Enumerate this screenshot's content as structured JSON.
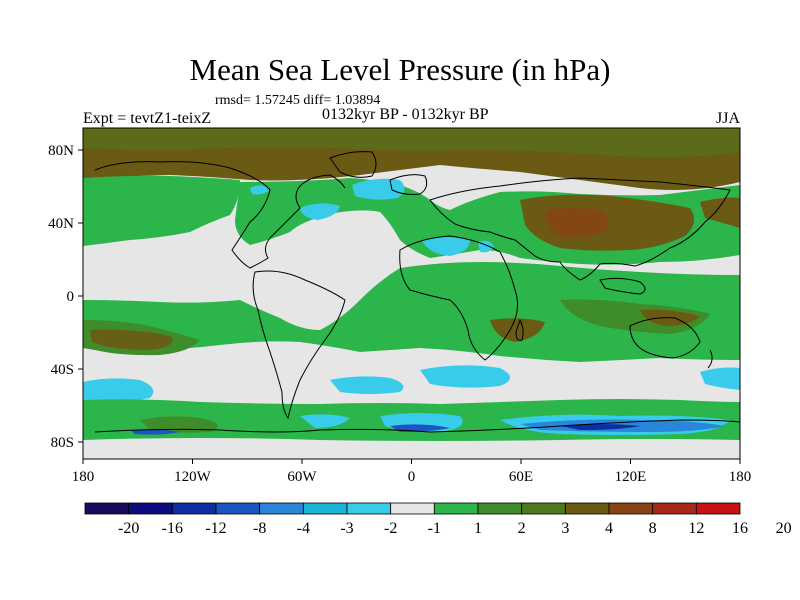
{
  "figure": {
    "title": "Mean Sea Level Pressure (in hPa)",
    "stats": "rmsd= 1.57245 diff= 1.03894",
    "experiment": "Expt = tevtZ1-teixZ",
    "period": "0132kyr BP - 0132kyr BP",
    "season": "JJA"
  },
  "axes": {
    "x_ticks": [
      "180",
      "120W",
      "60W",
      "0",
      "60E",
      "120E",
      "180"
    ],
    "y_ticks": [
      "80N",
      "40N",
      "0",
      "40S",
      "80S"
    ]
  },
  "colorbar": {
    "colors": [
      "#1b0a5c",
      "#0c0c80",
      "#0d2fa0",
      "#1a55c0",
      "#2a86d8",
      "#1ab3d8",
      "#38ccea",
      "#e6e6e6",
      "#2bb54a",
      "#3f8c2a",
      "#4f7a1c",
      "#6a5a14",
      "#8a4214",
      "#a8281a",
      "#c81212"
    ],
    "labels": [
      "-20",
      "-16",
      "-12",
      "-8",
      "-4",
      "-3",
      "-2",
      "-1",
      "1",
      "2",
      "3",
      "4",
      "8",
      "12",
      "16",
      "20"
    ]
  }
}
